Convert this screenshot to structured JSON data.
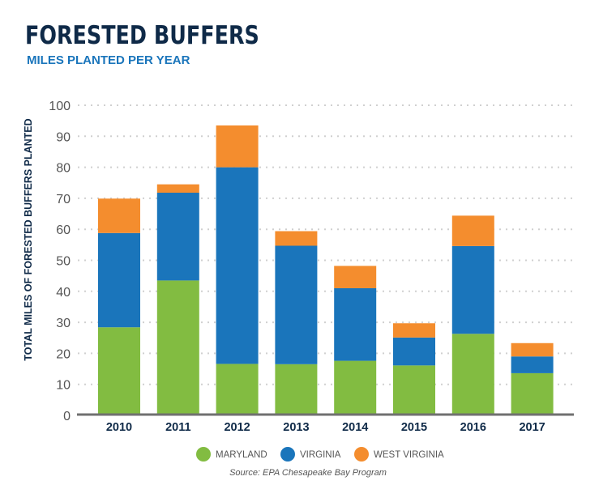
{
  "header": {
    "title": "FORESTED BUFFERS",
    "subtitle": "MILES PLANTED PER YEAR"
  },
  "source": "Source: EPA Chesapeake Bay Program",
  "chart_data": {
    "type": "bar",
    "stacked": true,
    "title": "FORESTED BUFFERS",
    "subtitle": "MILES PLANTED PER YEAR",
    "xlabel": "",
    "ylabel": "TOTAL MILES OF FORESTED  BUFFERS PLANTED",
    "ylim": [
      0,
      100
    ],
    "yticks": [
      0,
      10,
      20,
      30,
      40,
      50,
      60,
      70,
      80,
      90,
      100
    ],
    "grid": true,
    "legend_position": "bottom",
    "categories": [
      "2010",
      "2011",
      "2012",
      "2013",
      "2014",
      "2015",
      "2016",
      "2017"
    ],
    "series": [
      {
        "name": "MARYLAND",
        "color": "#82bc41",
        "values": [
          28.4,
          43.5,
          16.6,
          16.5,
          17.6,
          16.1,
          26.3,
          13.6
        ]
      },
      {
        "name": "VIRGINIA",
        "color": "#1a75bb",
        "values": [
          30.4,
          28.3,
          63.4,
          38.2,
          23.4,
          9.0,
          28.3,
          5.4
        ]
      },
      {
        "name": "WEST VIRGINIA",
        "color": "#f48d2e",
        "values": [
          11.1,
          2.7,
          13.5,
          4.7,
          7.2,
          4.6,
          9.8,
          4.3
        ]
      }
    ]
  }
}
